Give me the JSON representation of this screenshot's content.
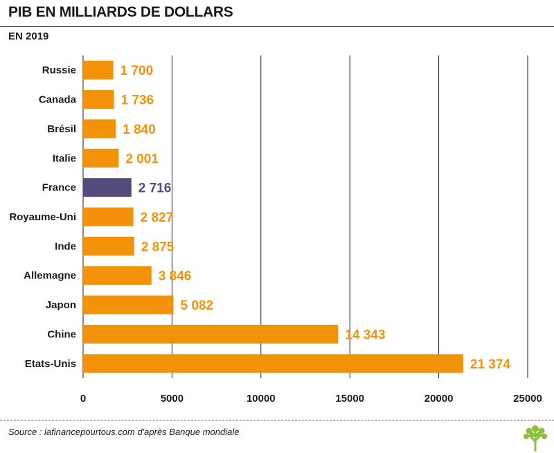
{
  "header": {
    "title": "PIB EN MILLIARDS DE DOLLARS",
    "subtitle": "EN 2019"
  },
  "footer": {
    "source": "Source : lafinancepourtous.com d'après Banque mondiale"
  },
  "colors": {
    "bar": "#F39208",
    "highlight": "#554A7C",
    "gridline": "#1a1a1a"
  },
  "icons": {
    "logo": "tree-icon"
  },
  "chart_data": {
    "type": "bar",
    "orientation": "horizontal",
    "categories": [
      "Russie",
      "Canada",
      "Brésil",
      "Italie",
      "France",
      "Royaume-Uni",
      "Inde",
      "Allemagne",
      "Japon",
      "Chine",
      "Etats-Unis"
    ],
    "values": [
      1700,
      1736,
      1840,
      2001,
      2716,
      2827,
      2875,
      3846,
      5082,
      14343,
      21374
    ],
    "value_labels": [
      "1 700",
      "1 736",
      "1 840",
      "2 001",
      "2 716",
      "2 827",
      "2 875",
      "3 846",
      "5 082",
      "14 343",
      "21 374"
    ],
    "highlighted_category": "France",
    "xlim": [
      0,
      25000
    ],
    "xticks": [
      0,
      5000,
      10000,
      15000,
      20000,
      25000
    ],
    "xtick_labels": [
      "0",
      "5000",
      "10000",
      "15000",
      "20000",
      "25000"
    ],
    "grid": "vertical",
    "legend": "none"
  }
}
